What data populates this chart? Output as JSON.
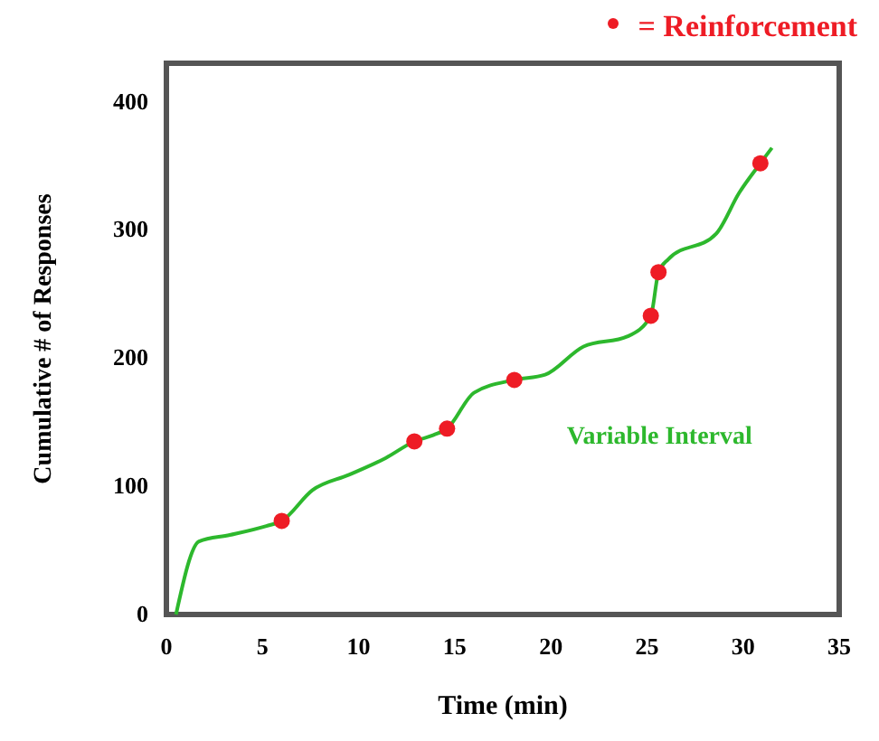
{
  "chart_data": {
    "type": "line",
    "xlabel": "Time (min)",
    "ylabel": "Cumulative # of Responses",
    "xlim": [
      0,
      35
    ],
    "ylim": [
      0,
      430
    ],
    "xticks": [
      0,
      5,
      10,
      15,
      20,
      25,
      30,
      35
    ],
    "yticks": [
      0,
      100,
      200,
      300,
      400
    ],
    "grid": false,
    "legend": "top right",
    "series": [
      {
        "name": "Variable Interval",
        "color": "#2db82d",
        "marker": "none",
        "x": [
          0.5,
          1.7,
          3.3,
          5.2,
          6.0,
          7.6,
          9.5,
          11.4,
          12.9,
          13.9,
          14.6,
          16.0,
          18.1,
          19.7,
          21.7,
          24.0,
          25.2,
          25.6,
          26.1,
          28.6,
          29.8,
          30.9,
          31.5
        ],
        "values": [
          0,
          57,
          62,
          69,
          73,
          97,
          109,
          122,
          135,
          140,
          145,
          173,
          183,
          187,
          209,
          217,
          233,
          267,
          277,
          297,
          329,
          352,
          364
        ]
      },
      {
        "name": "= Reinforcement",
        "color": "#ee1c25",
        "type": "scatter",
        "marker": "circle",
        "x": [
          6.0,
          12.9,
          14.6,
          18.1,
          25.2,
          25.6,
          30.9
        ],
        "values": [
          73,
          135,
          145,
          183,
          233,
          267,
          352
        ]
      }
    ]
  }
}
